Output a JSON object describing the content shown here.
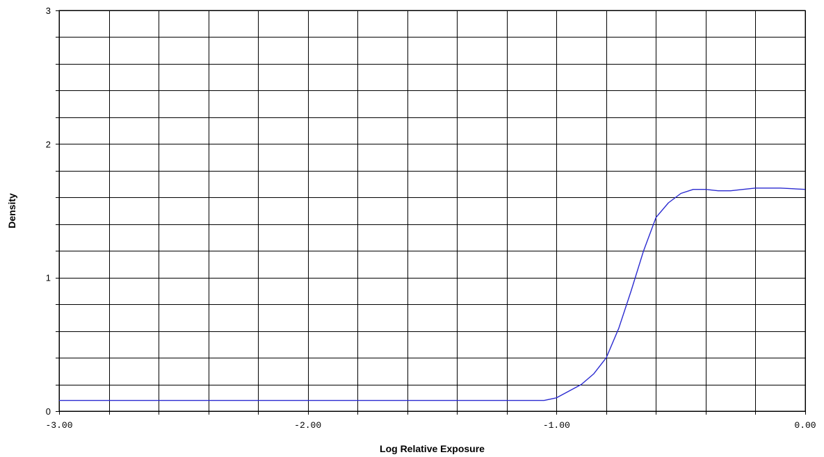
{
  "chart_data": {
    "type": "line",
    "title": "",
    "xlabel": "Log Relative Exposure",
    "ylabel": "Density",
    "xlim": [
      -3.0,
      0.0
    ],
    "ylim": [
      0,
      3
    ],
    "x_ticks": [
      "-3.00",
      "-2.00",
      "-1.00",
      "0.00"
    ],
    "x_tick_values": [
      -3.0,
      -2.0,
      -1.0,
      0.0
    ],
    "y_ticks": [
      "0",
      "1",
      "2",
      "3"
    ],
    "y_tick_values": [
      0,
      1,
      2,
      3
    ],
    "x_grid_step": 0.2,
    "y_grid_step": 0.2,
    "grid": true,
    "legend": "none",
    "series_color": "#2a2ad0",
    "series": [
      {
        "name": "",
        "x": [
          -3.0,
          -2.5,
          -2.0,
          -1.5,
          -1.1,
          -1.05,
          -1.0,
          -0.95,
          -0.9,
          -0.85,
          -0.8,
          -0.75,
          -0.7,
          -0.65,
          -0.6,
          -0.55,
          -0.5,
          -0.45,
          -0.4,
          -0.35,
          -0.3,
          -0.25,
          -0.2,
          -0.1,
          0.0
        ],
        "y": [
          0.08,
          0.08,
          0.08,
          0.08,
          0.08,
          0.08,
          0.1,
          0.15,
          0.2,
          0.28,
          0.4,
          0.62,
          0.9,
          1.2,
          1.45,
          1.56,
          1.63,
          1.66,
          1.66,
          1.65,
          1.65,
          1.66,
          1.67,
          1.67,
          1.66
        ]
      }
    ]
  }
}
